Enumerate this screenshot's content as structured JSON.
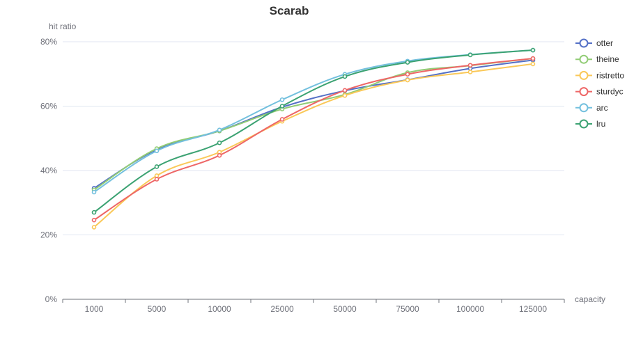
{
  "chart_data": {
    "type": "line",
    "title": "Scarab",
    "xlabel": "capacity",
    "ylabel": "hit ratio",
    "categories": [
      "1000",
      "5000",
      "10000",
      "25000",
      "50000",
      "75000",
      "100000",
      "125000"
    ],
    "ylim": [
      0,
      80
    ],
    "yticks": [
      0,
      20,
      40,
      60,
      80
    ],
    "ytick_labels": [
      "0%",
      "20%",
      "40%",
      "60%",
      "80%"
    ],
    "grid": true,
    "legend": "right",
    "smooth": true,
    "series": [
      {
        "name": "otter",
        "color": "#5470c6",
        "values": [
          34.5,
          46.5,
          52.3,
          59.7,
          64.8,
          68.2,
          71.7,
          74.3
        ]
      },
      {
        "name": "theine",
        "color": "#91cc75",
        "values": [
          34.0,
          46.8,
          52.3,
          59.1,
          63.6,
          70.4,
          72.6,
          74.8
        ]
      },
      {
        "name": "ristretto",
        "color": "#fac858",
        "values": [
          22.4,
          38.4,
          45.7,
          55.3,
          63.3,
          68.1,
          70.6,
          73.1
        ]
      },
      {
        "name": "sturdyc",
        "color": "#ee6666",
        "values": [
          24.6,
          37.3,
          44.7,
          55.9,
          64.9,
          69.9,
          72.7,
          74.8
        ]
      },
      {
        "name": "arc",
        "color": "#73c0de",
        "values": [
          33.3,
          46.1,
          52.6,
          62.0,
          69.9,
          74.0,
          76.0,
          77.4
        ]
      },
      {
        "name": "lru",
        "color": "#3ba272",
        "values": [
          27.0,
          41.2,
          48.6,
          60.0,
          69.2,
          73.6,
          75.9,
          77.4
        ]
      }
    ]
  }
}
